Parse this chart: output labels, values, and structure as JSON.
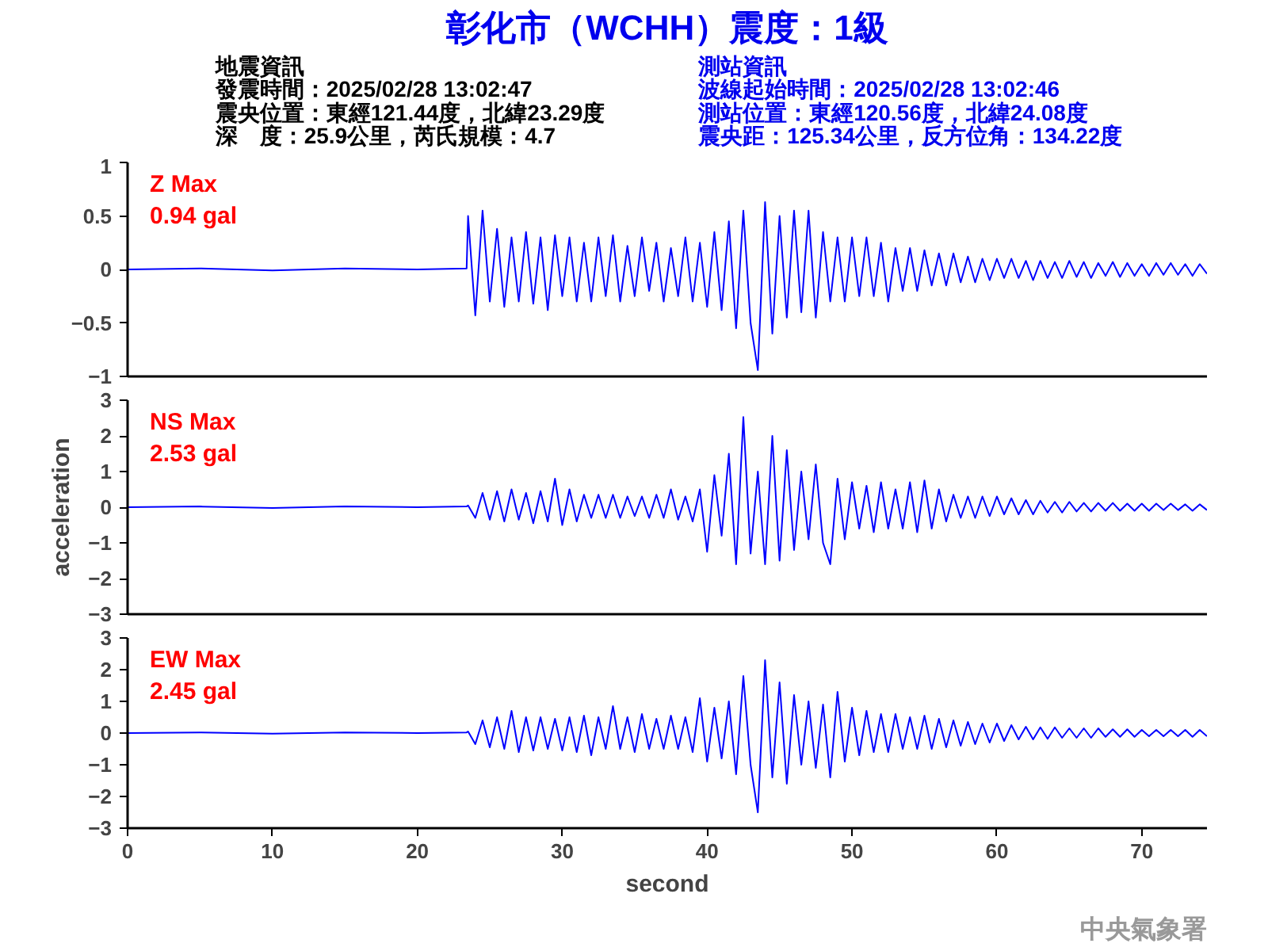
{
  "chart_data": [
    {
      "type": "line",
      "title": "彰化市（WCHH）震度：1級",
      "annotations": [
        "地震資訊",
        "發震時間：2025/02/28 13:02:47",
        "震央位置：東經121.44度，北緯23.29度",
        "深　度：25.9公里，芮氏規模：4.7",
        "測站資訊",
        "波線起始時間：2025/02/28 13:02:46",
        "測站位置：東經120.56度，北緯24.08度",
        "震央距：125.34公里，反方位角：134.22度",
        "Z Max",
        "0.94 gal"
      ],
      "xlim": [
        0,
        74.5
      ],
      "ylim": [
        -1,
        1
      ],
      "yticks": [
        -1,
        -0.5,
        0,
        0.5,
        1
      ],
      "tick_labels": "y",
      "grid": false,
      "x": [
        0,
        5,
        10,
        15,
        20,
        23.4,
        23.5,
        24,
        24.5,
        25,
        25.5,
        26,
        26.5,
        27,
        27.5,
        28,
        28.5,
        29,
        29.5,
        30,
        30.5,
        31,
        31.5,
        32,
        32.5,
        33,
        33.5,
        34,
        34.5,
        35,
        35.5,
        36,
        36.5,
        37,
        37.5,
        38,
        38.5,
        39,
        39.5,
        40,
        40.5,
        41,
        41.5,
        42,
        42.5,
        43,
        43.5,
        44,
        44.5,
        45,
        45.5,
        46,
        46.5,
        47,
        47.5,
        48,
        48.5,
        49,
        49.5,
        50,
        50.5,
        51,
        51.5,
        52,
        52.5,
        53,
        53.5,
        54,
        54.5,
        55,
        55.5,
        56,
        56.5,
        57,
        57.5,
        58,
        58.5,
        59,
        59.5,
        60,
        60.5,
        61,
        61.5,
        62,
        62.5,
        63,
        63.5,
        64,
        64.5,
        65,
        65.5,
        66,
        66.5,
        67,
        67.5,
        68,
        68.5,
        69,
        69.5,
        70,
        70.5,
        71,
        71.5,
        72,
        72.5,
        73,
        73.5,
        74,
        74.5
      ],
      "series": [
        {
          "color": "#0000ff",
          "values": [
            0,
            0.01,
            -0.01,
            0.01,
            0,
            0.01,
            0.5,
            -0.43,
            0.55,
            -0.3,
            0.38,
            -0.35,
            0.3,
            -0.3,
            0.35,
            -0.32,
            0.3,
            -0.38,
            0.32,
            -0.25,
            0.3,
            -0.3,
            0.25,
            -0.3,
            0.3,
            -0.25,
            0.32,
            -0.3,
            0.22,
            -0.25,
            0.3,
            -0.2,
            0.25,
            -0.3,
            0.2,
            -0.25,
            0.3,
            -0.3,
            0.25,
            -0.35,
            0.35,
            -0.38,
            0.45,
            -0.55,
            0.55,
            -0.5,
            -0.94,
            0.63,
            -0.6,
            0.5,
            -0.45,
            0.55,
            -0.4,
            0.55,
            -0.45,
            0.35,
            -0.3,
            0.3,
            -0.3,
            0.3,
            -0.25,
            0.3,
            -0.25,
            0.25,
            -0.3,
            0.2,
            -0.2,
            0.2,
            -0.2,
            0.18,
            -0.15,
            0.15,
            -0.15,
            0.15,
            -0.12,
            0.12,
            -0.12,
            0.1,
            -0.1,
            0.1,
            -0.08,
            0.1,
            -0.08,
            0.08,
            -0.1,
            0.08,
            -0.08,
            0.07,
            -0.08,
            0.08,
            -0.07,
            0.07,
            -0.08,
            0.06,
            -0.06,
            0.07,
            -0.07,
            0.06,
            -0.06,
            0.05,
            -0.06,
            0.06,
            -0.05,
            0.06,
            -0.05,
            0.05,
            -0.06,
            0.05,
            -0.04
          ]
        }
      ]
    },
    {
      "type": "line",
      "ylabel": "acceleration",
      "annotations": [
        "NS Max",
        "2.53 gal"
      ],
      "xlim": [
        0,
        74.5
      ],
      "ylim": [
        -3,
        3
      ],
      "yticks": [
        -3,
        -2,
        -1,
        0,
        1,
        2,
        3
      ],
      "tick_labels": "y",
      "grid": false,
      "x": [
        0,
        5,
        10,
        15,
        20,
        23.4,
        23.5,
        24,
        24.5,
        25,
        25.5,
        26,
        26.5,
        27,
        27.5,
        28,
        28.5,
        29,
        29.5,
        30,
        30.5,
        31,
        31.5,
        32,
        32.5,
        33,
        33.5,
        34,
        34.5,
        35,
        35.5,
        36,
        36.5,
        37,
        37.5,
        38,
        38.5,
        39,
        39.5,
        40,
        40.5,
        41,
        41.5,
        42,
        42.5,
        43,
        43.5,
        44,
        44.5,
        45,
        45.5,
        46,
        46.5,
        47,
        47.5,
        48,
        48.5,
        49,
        49.5,
        50,
        50.5,
        51,
        51.5,
        52,
        52.5,
        53,
        53.5,
        54,
        54.5,
        55,
        55.5,
        56,
        56.5,
        57,
        57.5,
        58,
        58.5,
        59,
        59.5,
        60,
        60.5,
        61,
        61.5,
        62,
        62.5,
        63,
        63.5,
        64,
        64.5,
        65,
        65.5,
        66,
        66.5,
        67,
        67.5,
        68,
        68.5,
        69,
        69.5,
        70,
        70.5,
        71,
        71.5,
        72,
        72.5,
        73,
        73.5,
        74,
        74.5
      ],
      "series": [
        {
          "color": "#0000ff",
          "values": [
            0,
            0.02,
            -0.02,
            0.02,
            0,
            0.02,
            0.05,
            -0.3,
            0.4,
            -0.35,
            0.45,
            -0.4,
            0.5,
            -0.35,
            0.4,
            -0.45,
            0.45,
            -0.4,
            0.8,
            -0.5,
            0.5,
            -0.4,
            0.35,
            -0.3,
            0.35,
            -0.3,
            0.35,
            -0.3,
            0.3,
            -0.25,
            0.3,
            -0.3,
            0.35,
            -0.3,
            0.5,
            -0.35,
            0.3,
            -0.4,
            0.5,
            -1.25,
            0.9,
            -0.8,
            1.5,
            -1.6,
            2.53,
            -1.3,
            1.0,
            -1.6,
            2.0,
            -1.5,
            1.6,
            -1.2,
            1.0,
            -0.9,
            1.2,
            -1.0,
            -1.6,
            0.8,
            -0.9,
            0.7,
            -0.6,
            0.6,
            -0.7,
            0.7,
            -0.6,
            0.5,
            -0.6,
            0.7,
            -0.7,
            0.75,
            -0.6,
            0.5,
            -0.4,
            0.35,
            -0.3,
            0.3,
            -0.3,
            0.3,
            -0.25,
            0.3,
            -0.2,
            0.25,
            -0.2,
            0.2,
            -0.2,
            0.18,
            -0.15,
            0.15,
            -0.15,
            0.15,
            -0.12,
            0.12,
            -0.12,
            0.12,
            -0.1,
            0.12,
            -0.1,
            0.1,
            -0.1,
            0.1,
            -0.1,
            0.1,
            -0.08,
            0.1,
            -0.08,
            0.08,
            -0.1,
            0.08,
            -0.08
          ]
        }
      ]
    },
    {
      "type": "line",
      "xlabel": "second",
      "annotations": [
        "EW Max",
        "2.45 gal",
        "中央氣象署"
      ],
      "xlim": [
        0,
        74.5
      ],
      "ylim": [
        -3,
        3
      ],
      "xticks": [
        0,
        10,
        20,
        30,
        40,
        50,
        60,
        70
      ],
      "yticks": [
        -3,
        -2,
        -1,
        0,
        1,
        2,
        3
      ],
      "grid": false,
      "x": [
        0,
        5,
        10,
        15,
        20,
        23.4,
        23.5,
        24,
        24.5,
        25,
        25.5,
        26,
        26.5,
        27,
        27.5,
        28,
        28.5,
        29,
        29.5,
        30,
        30.5,
        31,
        31.5,
        32,
        32.5,
        33,
        33.5,
        34,
        34.5,
        35,
        35.5,
        36,
        36.5,
        37,
        37.5,
        38,
        38.5,
        39,
        39.5,
        40,
        40.5,
        41,
        41.5,
        42,
        42.5,
        43,
        43.5,
        44,
        44.5,
        45,
        45.5,
        46,
        46.5,
        47,
        47.5,
        48,
        48.5,
        49,
        49.5,
        50,
        50.5,
        51,
        51.5,
        52,
        52.5,
        53,
        53.5,
        54,
        54.5,
        55,
        55.5,
        56,
        56.5,
        57,
        57.5,
        58,
        58.5,
        59,
        59.5,
        60,
        60.5,
        61,
        61.5,
        62,
        62.5,
        63,
        63.5,
        64,
        64.5,
        65,
        65.5,
        66,
        66.5,
        67,
        67.5,
        68,
        68.5,
        69,
        69.5,
        70,
        70.5,
        71,
        71.5,
        72,
        72.5,
        73,
        73.5,
        74,
        74.5
      ],
      "series": [
        {
          "color": "#0000ff",
          "values": [
            0,
            0.02,
            -0.02,
            0.02,
            0,
            0.02,
            0.05,
            -0.35,
            0.4,
            -0.45,
            0.5,
            -0.5,
            0.7,
            -0.6,
            0.5,
            -0.55,
            0.5,
            -0.5,
            0.45,
            -0.55,
            0.5,
            -0.6,
            0.55,
            -0.7,
            0.5,
            -0.5,
            0.85,
            -0.5,
            0.5,
            -0.6,
            0.6,
            -0.5,
            0.45,
            -0.5,
            0.55,
            -0.5,
            0.5,
            -0.6,
            1.1,
            -0.9,
            0.8,
            -0.8,
            1.0,
            -1.3,
            1.8,
            -1.0,
            -2.5,
            2.3,
            -1.4,
            1.6,
            -1.6,
            1.2,
            -1.0,
            1.0,
            -1.1,
            0.9,
            -1.4,
            1.3,
            -0.9,
            0.8,
            -0.7,
            0.7,
            -0.6,
            0.6,
            -0.6,
            0.6,
            -0.5,
            0.5,
            -0.5,
            0.55,
            -0.5,
            0.45,
            -0.45,
            0.4,
            -0.4,
            0.35,
            -0.35,
            0.3,
            -0.3,
            0.3,
            -0.25,
            0.25,
            -0.2,
            0.2,
            -0.2,
            0.18,
            -0.18,
            0.18,
            -0.15,
            0.15,
            -0.15,
            0.15,
            -0.15,
            0.15,
            -0.12,
            0.12,
            -0.12,
            0.12,
            -0.12,
            0.1,
            -0.1,
            0.1,
            -0.1,
            0.1,
            -0.1,
            0.1,
            -0.12,
            0.1,
            -0.1
          ]
        }
      ]
    }
  ]
}
